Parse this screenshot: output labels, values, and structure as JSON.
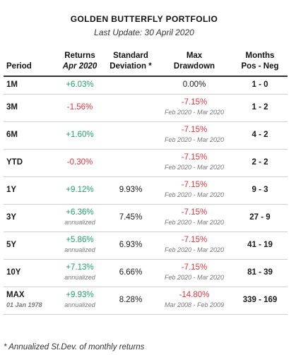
{
  "title": "GOLDEN BUTTERFLY PORTFOLIO",
  "subtitle": "Last Update: 30 April 2020",
  "headers": {
    "period": "Period",
    "returns_line1": "Returns",
    "returns_line2": "Apr 2020",
    "std_line1": "Standard",
    "std_line2": "Deviation *",
    "dd_line1": "Max",
    "dd_line2": "Drawdown",
    "months_line1": "Months",
    "months_line2": "Pos - Neg"
  },
  "rows": [
    {
      "period": "1M",
      "period_sub": "",
      "return": "+6.03%",
      "return_sub": "",
      "std": "",
      "dd": "0.00%",
      "dd_range": "",
      "months": "1 - 0"
    },
    {
      "period": "3M",
      "period_sub": "",
      "return": "-1.56%",
      "return_sub": "",
      "std": "",
      "dd": "-7.15%",
      "dd_range": "Feb 2020 - Mar 2020",
      "months": "1 - 2"
    },
    {
      "period": "6M",
      "period_sub": "",
      "return": "+1.60%",
      "return_sub": "",
      "std": "",
      "dd": "-7.15%",
      "dd_range": "Feb 2020 - Mar 2020",
      "months": "4 - 2"
    },
    {
      "period": "YTD",
      "period_sub": "",
      "return": "-0.30%",
      "return_sub": "",
      "std": "",
      "dd": "-7.15%",
      "dd_range": "Feb 2020 - Mar 2020",
      "months": "2 - 2"
    },
    {
      "period": "1Y",
      "period_sub": "",
      "return": "+9.12%",
      "return_sub": "",
      "std": "9.93%",
      "dd": "-7.15%",
      "dd_range": "Feb 2020 - Mar 2020",
      "months": "9 - 3"
    },
    {
      "period": "3Y",
      "period_sub": "",
      "return": "+6.36%",
      "return_sub": "annualized",
      "std": "7.45%",
      "dd": "-7.15%",
      "dd_range": "Feb 2020 - Mar 2020",
      "months": "27 - 9"
    },
    {
      "period": "5Y",
      "period_sub": "",
      "return": "+5.86%",
      "return_sub": "annualized",
      "std": "6.93%",
      "dd": "-7.15%",
      "dd_range": "Feb 2020 - Mar 2020",
      "months": "41 - 19"
    },
    {
      "period": "10Y",
      "period_sub": "",
      "return": "+7.13%",
      "return_sub": "annualized",
      "std": "6.66%",
      "dd": "-7.15%",
      "dd_range": "Feb 2020 - Mar 2020",
      "months": "81 - 39"
    },
    {
      "period": "MAX",
      "period_sub": "01 Jan 1978",
      "return": "+9.93%",
      "return_sub": "annualized",
      "std": "8.28%",
      "dd": "-14.80%",
      "dd_range": "Mar 2008 - Feb 2009",
      "months": "339 - 169"
    }
  ],
  "footnote": "* Annualized St.Dev. of monthly returns",
  "colors": {
    "positive": "#1e9e6e",
    "negative": "#e0343c"
  }
}
